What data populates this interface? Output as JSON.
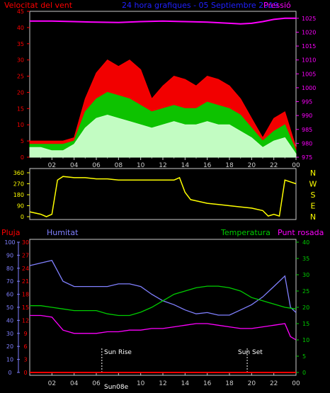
{
  "header": {
    "left_title": "Velocitat del vent",
    "center_title": "24 hora grafiques - 05 Septiembre 2019",
    "right_title": "Pressió"
  },
  "wind_chart": {
    "type": "area",
    "x_ticks": [
      "02",
      "04",
      "06",
      "08",
      "10",
      "12",
      "14",
      "16",
      "18",
      "20",
      "22",
      "00"
    ],
    "y_left_ticks": [
      "0",
      "5",
      "10",
      "15",
      "20",
      "25",
      "30",
      "35",
      "40",
      "45"
    ],
    "y_left_range": [
      0,
      45
    ],
    "y_right_ticks": [
      "975",
      "980",
      "985",
      "990",
      "995",
      "1000",
      "1005",
      "1010",
      "1015",
      "1020",
      "1025"
    ],
    "y_right_range": [
      975,
      1027.5
    ],
    "series": [
      {
        "name": "Velocitat del vent",
        "color": "#ff0000",
        "x": [
          0,
          1,
          2,
          3,
          4,
          5,
          6,
          7,
          8,
          9,
          10,
          11,
          12,
          13,
          14,
          15,
          16,
          17,
          18,
          19,
          20,
          21,
          22,
          23,
          24
        ],
        "y": [
          5,
          5,
          5,
          5,
          6,
          18,
          26,
          30,
          28,
          30,
          27,
          18,
          22,
          25,
          24,
          22,
          25,
          24,
          22,
          18,
          12,
          6,
          12,
          14,
          3
        ]
      },
      {
        "name": "",
        "color": "#00cc00",
        "x": [
          0,
          1,
          2,
          3,
          4,
          5,
          6,
          7,
          8,
          9,
          10,
          11,
          12,
          13,
          14,
          15,
          16,
          17,
          18,
          19,
          20,
          21,
          22,
          23,
          24
        ],
        "y": [
          4,
          4,
          4,
          4,
          5,
          14,
          18,
          20,
          19,
          18,
          16,
          14,
          15,
          16,
          15,
          15,
          17,
          16,
          15,
          13,
          9,
          5,
          8,
          10,
          2
        ]
      },
      {
        "name": "",
        "color": "#ccffcc",
        "x": [
          0,
          1,
          2,
          3,
          4,
          5,
          6,
          7,
          8,
          9,
          10,
          11,
          12,
          13,
          14,
          15,
          16,
          17,
          18,
          19,
          20,
          21,
          22,
          23,
          24
        ],
        "y": [
          3,
          3,
          2,
          2,
          4,
          9,
          12,
          13,
          12,
          11,
          10,
          9,
          10,
          11,
          10,
          10,
          11,
          10,
          10,
          8,
          6,
          3,
          5,
          6,
          1
        ]
      },
      {
        "name": "Pressió",
        "color": "#ff00ff",
        "x": [
          0,
          2,
          4,
          6,
          8,
          10,
          12,
          14,
          16,
          18,
          19,
          20,
          21,
          22,
          23,
          24
        ],
        "y": [
          1024,
          1024,
          1023.8,
          1023.6,
          1023.5,
          1023.8,
          1024,
          1023.8,
          1023.6,
          1023.2,
          1023,
          1023.2,
          1023.8,
          1024.6,
          1025,
          1025
        ]
      }
    ]
  },
  "direction_chart": {
    "type": "line",
    "y_ticks": [
      "0",
      "90",
      "180",
      "270",
      "360"
    ],
    "y_range": [
      0,
      360
    ],
    "compass_labels": [
      "N",
      "W",
      "S",
      "E",
      "N"
    ],
    "series": [
      {
        "name": "",
        "color": "#ffff00",
        "x": [
          0,
          1,
          1.5,
          2,
          2.5,
          3,
          4,
          5,
          6,
          7,
          8,
          9,
          10,
          11,
          12,
          13,
          13.5,
          14,
          14.5,
          15,
          16,
          17,
          18,
          19,
          20,
          21,
          21.5,
          22,
          22.5,
          23,
          24
        ],
        "y": [
          40,
          20,
          0,
          20,
          300,
          330,
          320,
          320,
          310,
          310,
          300,
          300,
          300,
          300,
          300,
          300,
          320,
          200,
          140,
          130,
          110,
          100,
          90,
          80,
          70,
          50,
          5,
          20,
          5,
          300,
          270
        ]
      }
    ]
  },
  "bottom_chart": {
    "type": "line",
    "labels": {
      "pluja": "Pluja",
      "humitat": "Humitat",
      "temperatura": "Temperatura",
      "punt_rosada": "Punt rosada"
    },
    "y_humitat_ticks": [
      "0",
      "10",
      "20",
      "30",
      "40",
      "50",
      "60",
      "70",
      "80",
      "90",
      "100"
    ],
    "y_pluja_ticks": [
      "0",
      "3",
      "6",
      "9",
      "12",
      "15",
      "18",
      "21",
      "24",
      "27",
      "30"
    ],
    "y_temp_ticks": [
      "0",
      "5",
      "10",
      "15",
      "20",
      "25",
      "30",
      "35",
      "40"
    ],
    "annotations": [
      "Sun Rise",
      "Sun08e",
      "Sun Set"
    ],
    "series": [
      {
        "name": "Humitat",
        "color": "#8080ff",
        "x": [
          0,
          1,
          2,
          3,
          4,
          5,
          6,
          7,
          8,
          9,
          10,
          11,
          12,
          13,
          14,
          15,
          16,
          17,
          18,
          19,
          20,
          21,
          22,
          23,
          23.5,
          24
        ],
        "y": [
          82,
          84,
          86,
          70,
          66,
          66,
          66,
          66,
          68,
          68,
          66,
          60,
          55,
          52,
          48,
          45,
          46,
          44,
          44,
          48,
          52,
          58,
          66,
          74,
          50,
          46
        ]
      },
      {
        "name": "Pluja",
        "color": "#ff0000",
        "x": [
          0,
          24
        ],
        "y": [
          0,
          0
        ]
      },
      {
        "name": "Temperatura",
        "color": "#00cc00",
        "x": [
          0,
          1,
          2,
          3,
          4,
          5,
          6,
          7,
          8,
          9,
          10,
          11,
          12,
          13,
          14,
          15,
          16,
          17,
          18,
          19,
          20,
          21,
          22,
          23,
          24
        ],
        "y": [
          20.5,
          20.5,
          20,
          19.5,
          19,
          19,
          19,
          18,
          17.5,
          17.5,
          18.5,
          20,
          22,
          24,
          25,
          26,
          26.5,
          26.5,
          26,
          25,
          23,
          22,
          21,
          20,
          19.5
        ]
      },
      {
        "name": "Punt rosada",
        "color": "#ff00ff",
        "x": [
          0,
          1,
          2,
          3,
          4,
          5,
          6,
          7,
          8,
          9,
          10,
          11,
          12,
          13,
          14,
          15,
          16,
          17,
          18,
          19,
          20,
          21,
          22,
          23,
          23.5,
          24
        ],
        "y": [
          17.5,
          17.5,
          17,
          13,
          12,
          12,
          12,
          12.5,
          12.5,
          13,
          13,
          13.5,
          13.5,
          14,
          14.5,
          15,
          15,
          14.5,
          14,
          13.5,
          13.5,
          14,
          14.5,
          15,
          11,
          10
        ]
      }
    ]
  }
}
